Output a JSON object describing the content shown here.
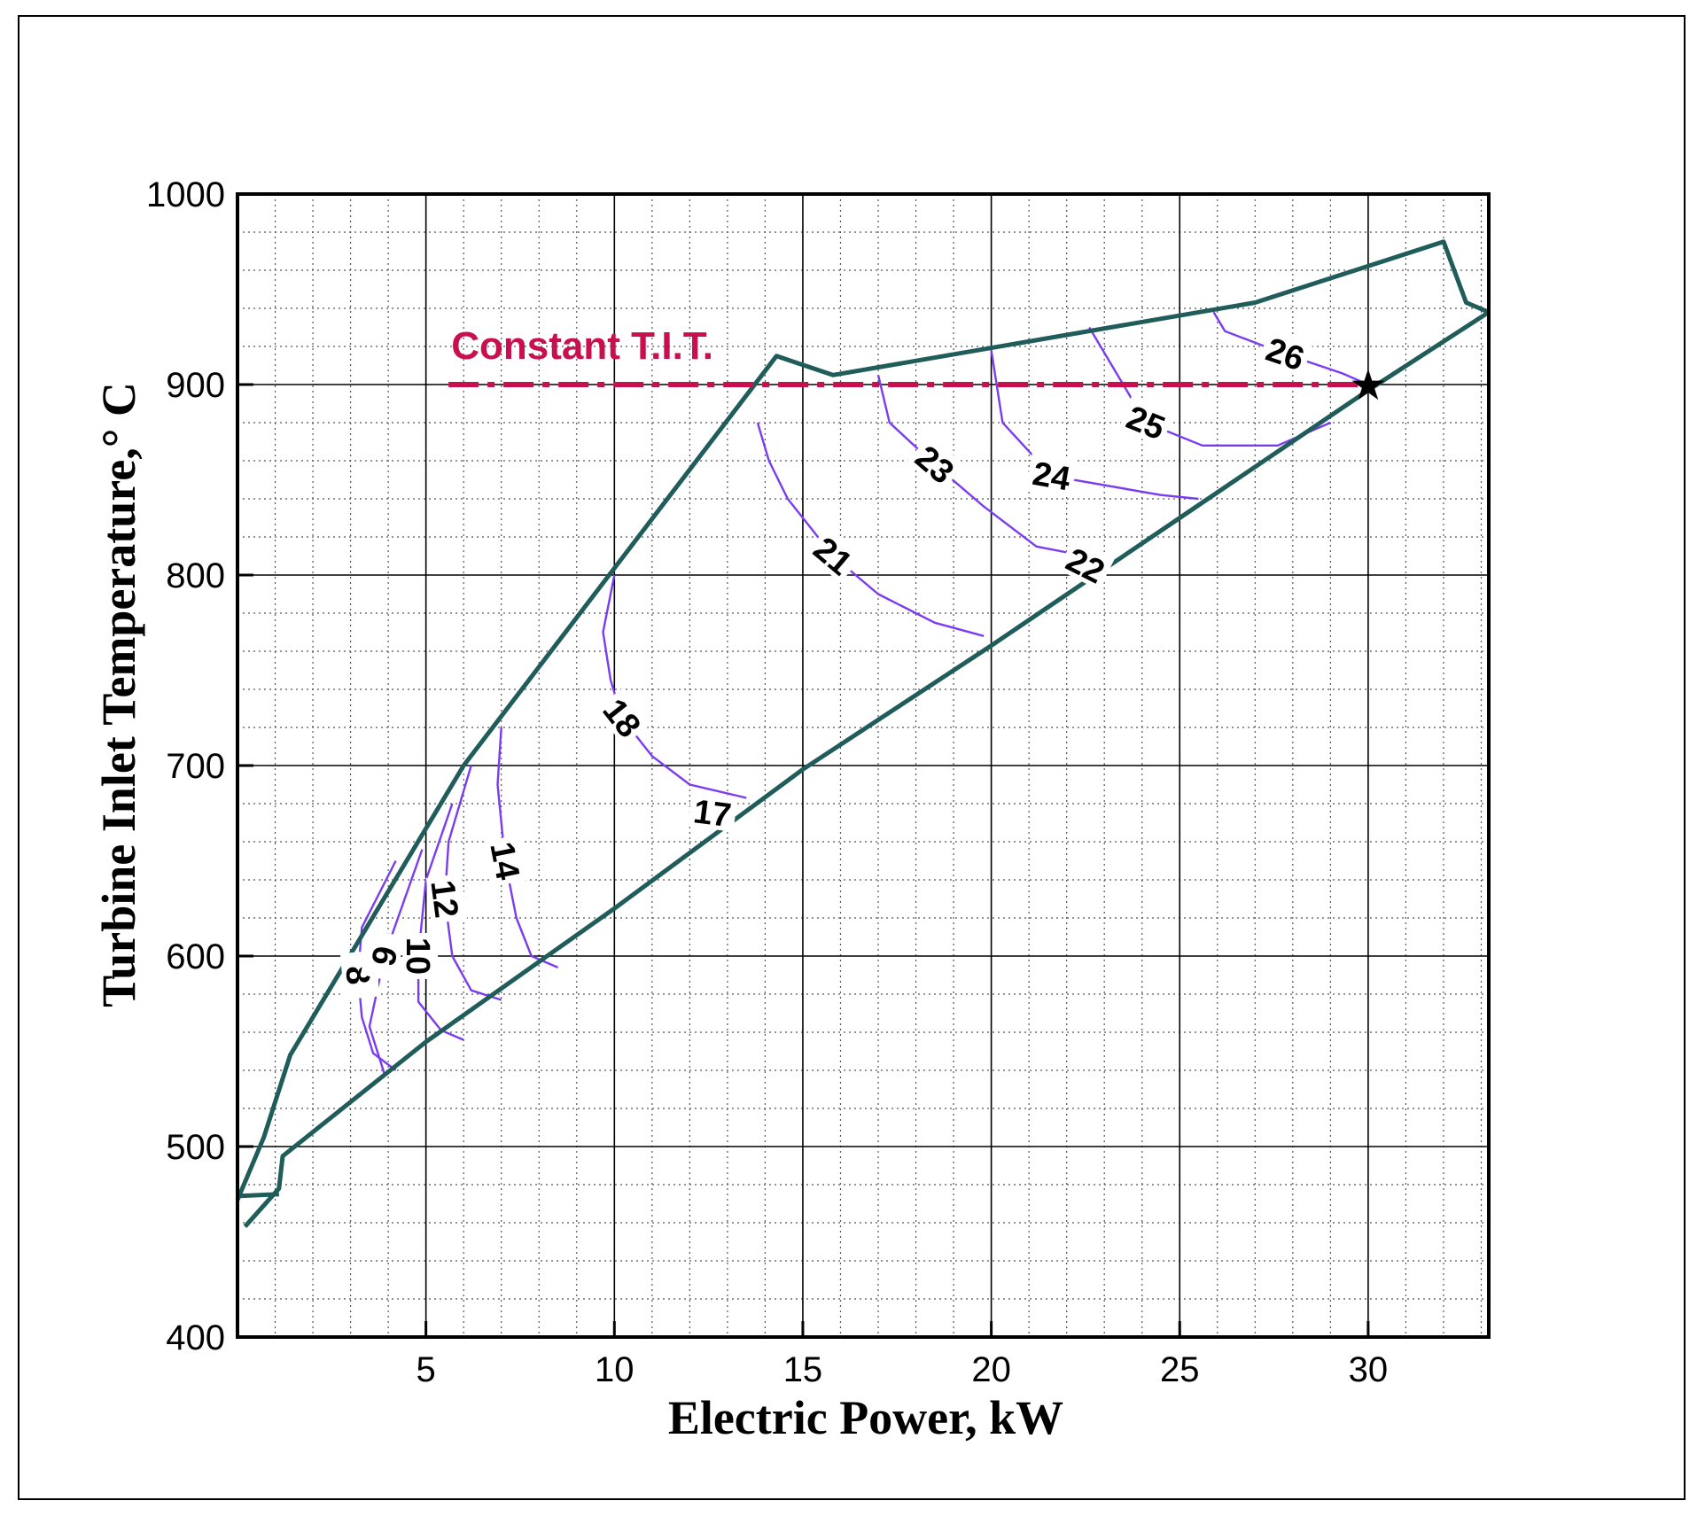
{
  "chart_data": {
    "type": "line",
    "title": "",
    "xlabel": "Electric Power, kW",
    "ylabel": "Turbine Inlet Temperature,° C",
    "xlim": [
      0,
      33.2
    ],
    "ylim": [
      400,
      1000
    ],
    "x_ticks": [
      5,
      10,
      15,
      20,
      25,
      30
    ],
    "y_ticks": [
      400,
      500,
      600,
      700,
      800,
      900,
      1000
    ],
    "x_minor_step": 1,
    "y_minor_step": 20,
    "grid": true,
    "colors": {
      "boundary": "#1f5c5a",
      "contour": "#7a3cf0",
      "constant_tit": "#c8104f",
      "grid": "#000000"
    },
    "boundary": {
      "upper": [
        [
          0,
          472
        ],
        [
          0.7,
          505
        ],
        [
          1.4,
          548
        ],
        [
          6,
          700
        ],
        [
          14.3,
          915
        ],
        [
          15.8,
          905
        ],
        [
          27,
          943
        ],
        [
          32,
          975
        ],
        [
          32.6,
          943
        ],
        [
          33.2,
          938
        ]
      ],
      "lower": [
        [
          0.2,
          458
        ],
        [
          1.1,
          478
        ],
        [
          1.2,
          495
        ],
        [
          5,
          555
        ],
        [
          10,
          625
        ],
        [
          15,
          698
        ],
        [
          20,
          763
        ],
        [
          25,
          830
        ],
        [
          30,
          897
        ],
        [
          33.2,
          938
        ]
      ],
      "left_segment": [
        [
          0,
          474
        ],
        [
          1.1,
          475
        ]
      ]
    },
    "contours": [
      {
        "label": "8",
        "points": [
          [
            4.2,
            650
          ],
          [
            3.3,
            615
          ],
          [
            3.2,
            590
          ],
          [
            3.3,
            568
          ],
          [
            3.6,
            549
          ],
          [
            4.2,
            540
          ]
        ]
      },
      {
        "label": "9",
        "points": [
          [
            4.9,
            656
          ],
          [
            3.9,
            600
          ],
          [
            3.5,
            563
          ],
          [
            3.9,
            538
          ]
        ]
      },
      {
        "label": "10",
        "points": [
          [
            5.7,
            680
          ],
          [
            5.0,
            640
          ],
          [
            4.8,
            600
          ],
          [
            4.8,
            576
          ],
          [
            5.4,
            561
          ],
          [
            6.0,
            556
          ]
        ]
      },
      {
        "label": "12",
        "points": [
          [
            6.2,
            700
          ],
          [
            5.6,
            660
          ],
          [
            5.5,
            630
          ],
          [
            5.7,
            600
          ],
          [
            6.2,
            582
          ],
          [
            7.0,
            577
          ]
        ]
      },
      {
        "label": "14",
        "points": [
          [
            7.0,
            720
          ],
          [
            6.9,
            690
          ],
          [
            7.1,
            650
          ],
          [
            7.4,
            620
          ],
          [
            7.8,
            600
          ],
          [
            8.5,
            594
          ]
        ]
      },
      {
        "label": "17",
        "points": [
          [
            13.0,
            673
          ],
          [
            12.6,
            675
          ],
          [
            12.2,
            676
          ]
        ]
      },
      {
        "label": "18",
        "points": [
          [
            10.0,
            800
          ],
          [
            9.7,
            770
          ],
          [
            9.9,
            745
          ],
          [
            10.2,
            725
          ],
          [
            11.0,
            705
          ],
          [
            12.0,
            690
          ],
          [
            13.5,
            683
          ]
        ]
      },
      {
        "label": "21",
        "points": [
          [
            13.8,
            880
          ],
          [
            14.1,
            860
          ],
          [
            14.6,
            840
          ],
          [
            15.8,
            810
          ],
          [
            17.0,
            790
          ],
          [
            18.5,
            775
          ],
          [
            19.8,
            768
          ]
        ]
      },
      {
        "label": "22",
        "points": [
          [
            23.0,
            800
          ],
          [
            22.5,
            805
          ],
          [
            22.0,
            810
          ]
        ]
      },
      {
        "label": "23",
        "points": [
          [
            17.0,
            905
          ],
          [
            17.3,
            880
          ],
          [
            18.5,
            858
          ],
          [
            19.8,
            836
          ],
          [
            21.2,
            815
          ],
          [
            22.5,
            810
          ]
        ]
      },
      {
        "label": "24",
        "points": [
          [
            20.0,
            918
          ],
          [
            20.3,
            880
          ],
          [
            21.6,
            852
          ],
          [
            24.5,
            842
          ],
          [
            25.5,
            840
          ]
        ]
      },
      {
        "label": "25",
        "points": [
          [
            22.6,
            930
          ],
          [
            23.2,
            910
          ],
          [
            24.1,
            880
          ],
          [
            25.6,
            868
          ],
          [
            27.6,
            868
          ],
          [
            29.0,
            880
          ]
        ]
      },
      {
        "label": "26",
        "points": [
          [
            25.9,
            938
          ],
          [
            26.2,
            928
          ],
          [
            27.8,
            916
          ],
          [
            29.3,
            906
          ],
          [
            30.0,
            900
          ]
        ]
      }
    ],
    "annotations": [
      {
        "text": "Constant T.I.T.",
        "x": 0.5,
        "y": 921
      },
      {
        "text": "★",
        "x": 30,
        "y": 900
      }
    ],
    "constant_tit_line": {
      "y": 900,
      "x_start": 5.6,
      "x_end": 30
    }
  }
}
